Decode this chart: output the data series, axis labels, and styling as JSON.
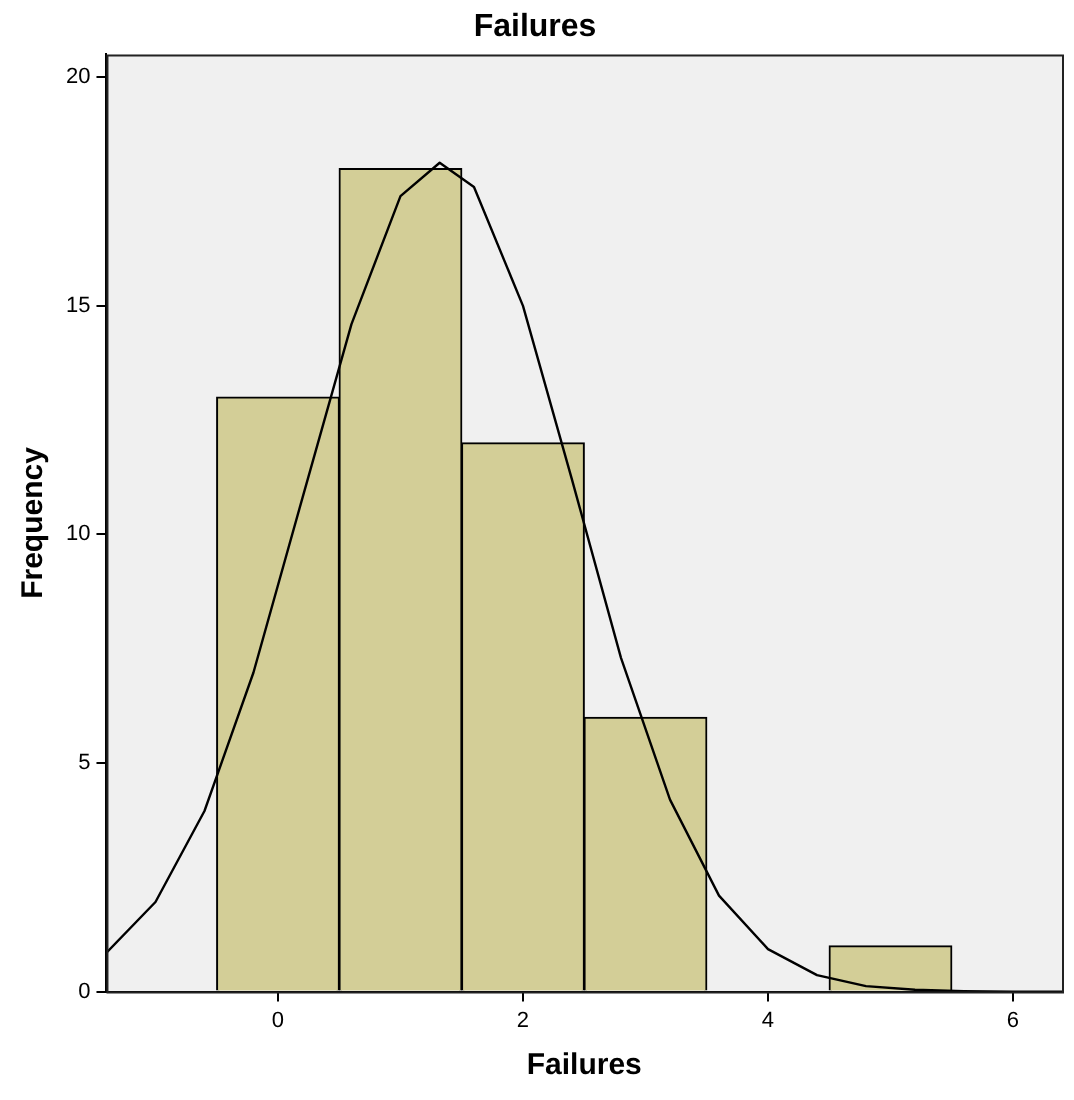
{
  "chart_data": {
    "type": "histogram",
    "title": "Failures",
    "xlabel": "Failures",
    "ylabel": "Frequency",
    "xlim": [
      -1.4,
      6.4
    ],
    "xticks": [
      0,
      2,
      4,
      6
    ],
    "ylim": [
      0,
      20.5
    ],
    "yticks": [
      0,
      5,
      10,
      15,
      20
    ],
    "grid": false,
    "legend": false,
    "series": [
      {
        "type": "histogram",
        "bins": [
          -0.5,
          0.5,
          1.5,
          2.5,
          3.5,
          4.5,
          5.5
        ],
        "values": [
          13,
          18,
          12,
          6,
          0,
          1
        ],
        "color": "#d3ce97"
      },
      {
        "type": "line",
        "marker": "none",
        "color": "#000000",
        "x": [
          -1.4,
          -1,
          -0.6,
          -0.2,
          0.2,
          0.6,
          1,
          1.32,
          1.6,
          2,
          2.4,
          2.8,
          3.2,
          3.6,
          4,
          4.4,
          4.8,
          5.2,
          5.6,
          6,
          6.4
        ],
        "values": [
          0.85,
          1.96,
          3.95,
          6.98,
          10.8,
          14.6,
          17.4,
          18.13,
          17.6,
          15,
          11.2,
          7.3,
          4.2,
          2.1,
          0.93,
          0.36,
          0.12,
          0.04,
          0.01,
          0,
          0
        ]
      }
    ]
  }
}
